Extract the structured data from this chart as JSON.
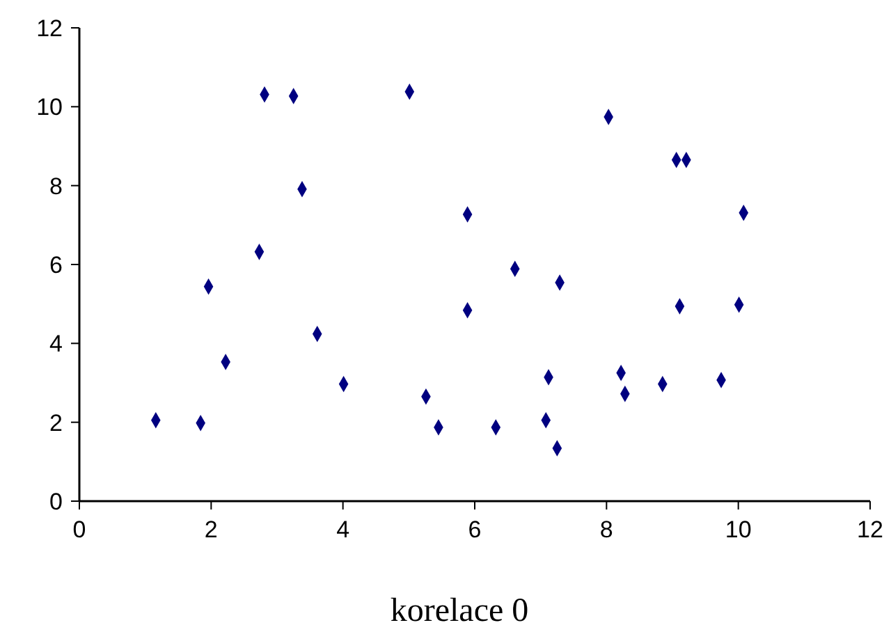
{
  "chart_data": {
    "type": "scatter",
    "xlabel": "korelace 0",
    "marker": "diamond",
    "grid": false,
    "x": [
      1.16,
      1.84,
      1.96,
      2.22,
      2.73,
      2.81,
      3.25,
      3.38,
      3.61,
      4.01,
      5.01,
      5.26,
      5.45,
      5.89,
      5.89,
      6.32,
      6.61,
      7.12,
      7.08,
      7.29,
      7.25,
      8.03,
      8.22,
      8.28,
      8.85,
      9.06,
      9.21,
      9.11,
      9.74,
      10.01,
      10.08
    ],
    "series": [
      {
        "color": "#000080",
        "values": [
          2.05,
          1.98,
          5.44,
          3.53,
          6.32,
          10.31,
          10.27,
          7.91,
          4.24,
          2.97,
          10.38,
          2.65,
          1.87,
          7.27,
          4.84,
          1.87,
          5.89,
          3.14,
          2.05,
          5.54,
          1.34,
          9.74,
          3.25,
          2.72,
          2.97,
          8.65,
          8.65,
          4.94,
          3.07,
          4.98,
          7.31
        ]
      }
    ],
    "xlim": [
      0,
      12
    ],
    "ylim": [
      0,
      12
    ],
    "xticks": [
      0,
      2,
      4,
      6,
      8,
      10,
      12
    ],
    "yticks": [
      0,
      2,
      4,
      6,
      8,
      10,
      12
    ]
  }
}
